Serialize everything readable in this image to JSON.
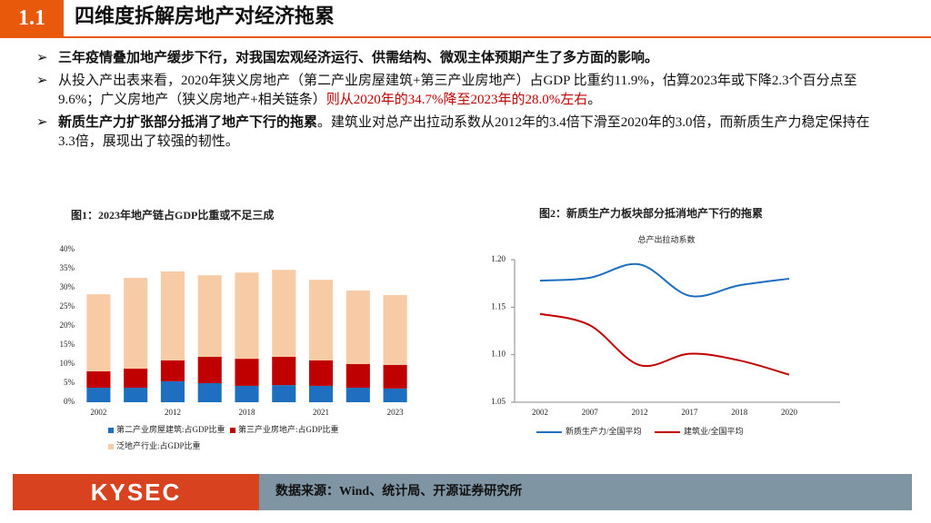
{
  "header": {
    "number": "1.1",
    "title": "四维度拆解房地产对经济拖累"
  },
  "bullets": [
    [
      "三年疫情叠加地产缓步下行，对我国宏观经济运行、供需结构、微观主体预期产生了多方面的影响。"
    ],
    [
      "从投入产出表来看，2020年狭义房地产（第二产业房屋建筑+第三产业房地产）占GDP  比重约11.9%，估算2023年或下降2.3个百分点至9.6%；广义房地产（狭义房地产+相关链条）",
      "则从2020年的34.7%降至2023年的28.0%左右",
      "。"
    ],
    [
      "新质生产力扩张部分抵消了地产下行的拖累",
      "。建筑业对总产出拉动系数从2012年的3.4倍下滑至2020年的3.0倍，而新质生产力稳定保持在3.3倍，展现出了较强的韧性。"
    ]
  ],
  "chart_data": [
    {
      "type": "bar",
      "title": "图1：2023年地产链占GDP比重或不足三成",
      "categories": [
        "2002",
        null,
        "2012",
        null,
        "2018",
        null,
        "2021",
        null,
        "2023"
      ],
      "series": [
        {
          "name": "第二产业房屋建筑:占GDP比重",
          "color": "#1f6fc0",
          "values": [
            3.8,
            3.8,
            5.5,
            5.0,
            4.3,
            4.5,
            4.3,
            3.8,
            3.6
          ]
        },
        {
          "name": "第三产业房地产:占GDP比重",
          "color": "#c00000",
          "values": [
            4.3,
            5.0,
            5.5,
            6.9,
            7.1,
            7.4,
            6.7,
            6.2,
            6.2
          ]
        },
        {
          "name": "泛地产行业:占GDP比重",
          "color": "#f8cba7",
          "values": [
            20.2,
            23.8,
            23.3,
            21.4,
            22.6,
            22.8,
            21.1,
            19.3,
            18.3
          ]
        }
      ],
      "ylim": [
        0,
        40
      ],
      "yticks": [
        {
          "value": 0,
          "label": "0%"
        },
        {
          "value": 5,
          "label": "5%"
        },
        {
          "value": 10,
          "label": "10%"
        },
        {
          "value": 15,
          "label": "15%"
        },
        {
          "value": 20,
          "label": "20%"
        },
        {
          "value": 25,
          "label": "25%"
        },
        {
          "value": 30,
          "label": "30%"
        },
        {
          "value": 35,
          "label": "35%"
        },
        {
          "value": 40,
          "label": "40%"
        }
      ]
    },
    {
      "type": "line",
      "title": "图2：新质生产力板块部分抵消地产下行的拖累",
      "subtitle": "总产出拉动系数",
      "categories": [
        "2002",
        "2007",
        "2012",
        "2017",
        "2018",
        "2020"
      ],
      "series": [
        {
          "name": "新质生产力/全国平均",
          "color": "#1f6fc0",
          "values": [
            1.178,
            1.181,
            1.195,
            1.162,
            1.173,
            1.18
          ]
        },
        {
          "name": "建筑业/全国平均",
          "color": "#c00000",
          "values": [
            1.143,
            1.131,
            1.089,
            1.101,
            1.094,
            1.079
          ]
        }
      ],
      "ylim": [
        1.05,
        1.2
      ],
      "yticks": [
        {
          "value": 1.05,
          "label": "1.05"
        },
        {
          "value": 1.1,
          "label": "1.10"
        },
        {
          "value": 1.15,
          "label": "1.15"
        },
        {
          "value": 1.2,
          "label": "1.20"
        }
      ]
    }
  ],
  "footer": {
    "logo": "KYSEC",
    "source": "数据来源：Wind、统计局、开源证券研究所"
  }
}
